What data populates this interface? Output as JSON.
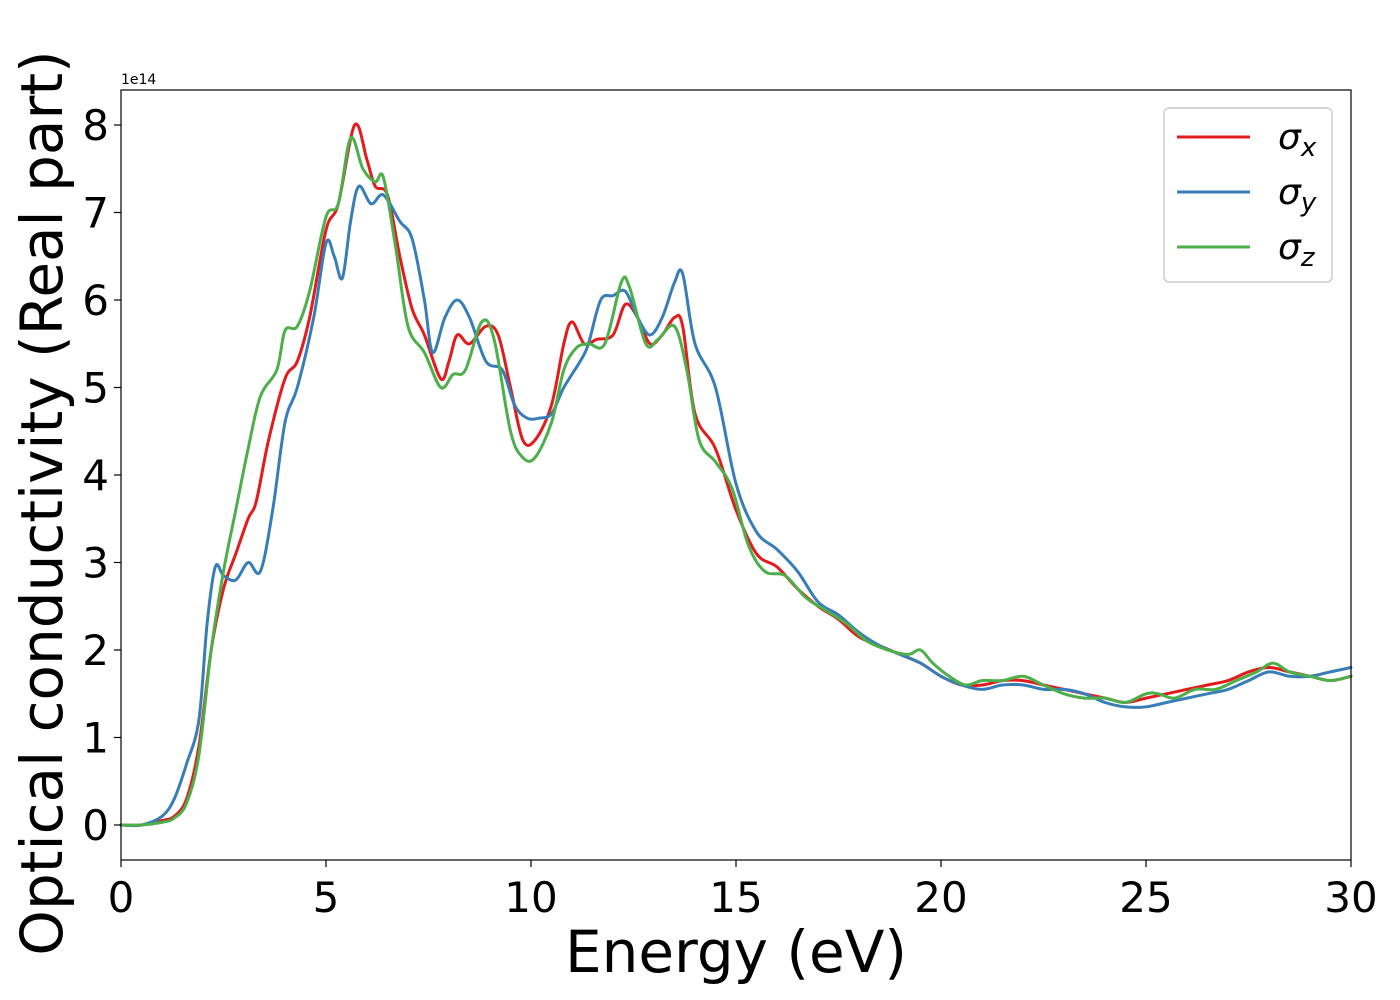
{
  "chart_data": {
    "type": "line",
    "xlabel": "Energy (eV)",
    "ylabel": "Optical conductivity (Real part)",
    "y_offset_label": "1e14",
    "xlim": [
      0,
      30
    ],
    "ylim": [
      -0.4,
      8.4
    ],
    "xticks": [
      0,
      5,
      10,
      15,
      20,
      25,
      30
    ],
    "yticks": [
      0,
      1,
      2,
      3,
      4,
      5,
      6,
      7,
      8
    ],
    "grid": false,
    "legend_position": "top-right",
    "series": [
      {
        "name": "σx",
        "legend_base": "σ",
        "legend_sub": "x",
        "color": "#e41a1c",
        "points": [
          [
            0,
            0
          ],
          [
            0.5,
            0
          ],
          [
            1,
            0.05
          ],
          [
            1.3,
            0.1
          ],
          [
            1.6,
            0.3
          ],
          [
            1.9,
            0.9
          ],
          [
            2.2,
            2.0
          ],
          [
            2.5,
            2.7
          ],
          [
            2.8,
            3.1
          ],
          [
            3.1,
            3.5
          ],
          [
            3.3,
            3.7
          ],
          [
            3.6,
            4.4
          ],
          [
            4.0,
            5.1
          ],
          [
            4.3,
            5.3
          ],
          [
            4.6,
            5.8
          ],
          [
            5.0,
            6.8
          ],
          [
            5.3,
            7.1
          ],
          [
            5.7,
            8.0
          ],
          [
            6.0,
            7.6
          ],
          [
            6.2,
            7.3
          ],
          [
            6.5,
            7.2
          ],
          [
            6.8,
            6.5
          ],
          [
            7.1,
            5.9
          ],
          [
            7.4,
            5.6
          ],
          [
            7.8,
            5.1
          ],
          [
            8.0,
            5.3
          ],
          [
            8.2,
            5.6
          ],
          [
            8.5,
            5.5
          ],
          [
            8.9,
            5.7
          ],
          [
            9.2,
            5.6
          ],
          [
            9.5,
            5.0
          ],
          [
            9.8,
            4.4
          ],
          [
            10.1,
            4.4
          ],
          [
            10.5,
            4.8
          ],
          [
            10.8,
            5.5
          ],
          [
            11.0,
            5.75
          ],
          [
            11.3,
            5.5
          ],
          [
            11.6,
            5.55
          ],
          [
            12.0,
            5.6
          ],
          [
            12.3,
            5.95
          ],
          [
            12.6,
            5.8
          ],
          [
            12.9,
            5.5
          ],
          [
            13.2,
            5.6
          ],
          [
            13.5,
            5.8
          ],
          [
            13.7,
            5.7
          ],
          [
            14.0,
            4.7
          ],
          [
            14.5,
            4.3
          ],
          [
            15.0,
            3.6
          ],
          [
            15.5,
            3.1
          ],
          [
            16.0,
            2.95
          ],
          [
            16.5,
            2.7
          ],
          [
            17.0,
            2.5
          ],
          [
            17.5,
            2.35
          ],
          [
            18.0,
            2.15
          ],
          [
            18.5,
            2.05
          ],
          [
            19.0,
            1.95
          ],
          [
            19.5,
            1.85
          ],
          [
            20.0,
            1.7
          ],
          [
            20.5,
            1.6
          ],
          [
            21.0,
            1.6
          ],
          [
            21.5,
            1.65
          ],
          [
            22.0,
            1.65
          ],
          [
            22.5,
            1.6
          ],
          [
            23.0,
            1.55
          ],
          [
            23.5,
            1.5
          ],
          [
            24.0,
            1.45
          ],
          [
            24.5,
            1.4
          ],
          [
            25.0,
            1.45
          ],
          [
            25.5,
            1.5
          ],
          [
            26.0,
            1.55
          ],
          [
            26.5,
            1.6
          ],
          [
            27.0,
            1.65
          ],
          [
            27.5,
            1.75
          ],
          [
            28.0,
            1.8
          ],
          [
            28.5,
            1.75
          ],
          [
            29.0,
            1.7
          ],
          [
            29.5,
            1.65
          ],
          [
            30.0,
            1.7
          ]
        ]
      },
      {
        "name": "σy",
        "legend_base": "σ",
        "legend_sub": "y",
        "color": "#377eb8",
        "points": [
          [
            0,
            0
          ],
          [
            0.5,
            0
          ],
          [
            1,
            0.1
          ],
          [
            1.3,
            0.3
          ],
          [
            1.6,
            0.7
          ],
          [
            1.9,
            1.2
          ],
          [
            2.1,
            2.3
          ],
          [
            2.3,
            2.95
          ],
          [
            2.5,
            2.85
          ],
          [
            2.8,
            2.8
          ],
          [
            3.1,
            3.0
          ],
          [
            3.4,
            2.9
          ],
          [
            3.7,
            3.6
          ],
          [
            4.0,
            4.6
          ],
          [
            4.3,
            5.0
          ],
          [
            4.7,
            5.8
          ],
          [
            5.0,
            6.65
          ],
          [
            5.2,
            6.5
          ],
          [
            5.4,
            6.25
          ],
          [
            5.6,
            6.9
          ],
          [
            5.8,
            7.3
          ],
          [
            6.1,
            7.1
          ],
          [
            6.4,
            7.2
          ],
          [
            6.8,
            6.9
          ],
          [
            7.1,
            6.7
          ],
          [
            7.4,
            6.0
          ],
          [
            7.6,
            5.4
          ],
          [
            7.9,
            5.8
          ],
          [
            8.2,
            6.0
          ],
          [
            8.5,
            5.8
          ],
          [
            8.9,
            5.3
          ],
          [
            9.3,
            5.2
          ],
          [
            9.6,
            4.8
          ],
          [
            9.9,
            4.65
          ],
          [
            10.2,
            4.65
          ],
          [
            10.5,
            4.7
          ],
          [
            10.8,
            5.0
          ],
          [
            11.2,
            5.3
          ],
          [
            11.4,
            5.5
          ],
          [
            11.7,
            6.0
          ],
          [
            12.0,
            6.05
          ],
          [
            12.3,
            6.1
          ],
          [
            12.6,
            5.8
          ],
          [
            12.9,
            5.6
          ],
          [
            13.2,
            5.8
          ],
          [
            13.5,
            6.2
          ],
          [
            13.7,
            6.3
          ],
          [
            14.0,
            5.5
          ],
          [
            14.5,
            5.0
          ],
          [
            15.0,
            3.9
          ],
          [
            15.5,
            3.35
          ],
          [
            16.0,
            3.15
          ],
          [
            16.5,
            2.9
          ],
          [
            17.0,
            2.55
          ],
          [
            17.5,
            2.4
          ],
          [
            18.0,
            2.2
          ],
          [
            18.5,
            2.05
          ],
          [
            19.0,
            1.95
          ],
          [
            19.5,
            1.85
          ],
          [
            20.0,
            1.7
          ],
          [
            20.5,
            1.6
          ],
          [
            21.0,
            1.55
          ],
          [
            21.5,
            1.6
          ],
          [
            22.0,
            1.6
          ],
          [
            22.5,
            1.55
          ],
          [
            23.0,
            1.55
          ],
          [
            23.5,
            1.5
          ],
          [
            24.0,
            1.4
          ],
          [
            24.5,
            1.35
          ],
          [
            25.0,
            1.35
          ],
          [
            25.5,
            1.4
          ],
          [
            26.0,
            1.45
          ],
          [
            26.5,
            1.5
          ],
          [
            27.0,
            1.55
          ],
          [
            27.5,
            1.65
          ],
          [
            28.0,
            1.75
          ],
          [
            28.5,
            1.7
          ],
          [
            29.0,
            1.7
          ],
          [
            29.5,
            1.75
          ],
          [
            30.0,
            1.8
          ]
        ]
      },
      {
        "name": "σz",
        "legend_base": "σ",
        "legend_sub": "z",
        "color": "#4daf4a",
        "points": [
          [
            0,
            0
          ],
          [
            0.5,
            0
          ],
          [
            1,
            0.03
          ],
          [
            1.3,
            0.08
          ],
          [
            1.6,
            0.25
          ],
          [
            1.9,
            0.8
          ],
          [
            2.2,
            2.0
          ],
          [
            2.5,
            2.9
          ],
          [
            2.8,
            3.6
          ],
          [
            3.1,
            4.3
          ],
          [
            3.4,
            4.9
          ],
          [
            3.8,
            5.2
          ],
          [
            4.0,
            5.65
          ],
          [
            4.3,
            5.7
          ],
          [
            4.6,
            6.1
          ],
          [
            5.0,
            6.95
          ],
          [
            5.3,
            7.1
          ],
          [
            5.6,
            7.85
          ],
          [
            5.9,
            7.5
          ],
          [
            6.2,
            7.35
          ],
          [
            6.4,
            7.4
          ],
          [
            6.7,
            6.6
          ],
          [
            7.0,
            5.7
          ],
          [
            7.4,
            5.4
          ],
          [
            7.8,
            5.0
          ],
          [
            8.1,
            5.15
          ],
          [
            8.4,
            5.2
          ],
          [
            8.8,
            5.75
          ],
          [
            9.1,
            5.55
          ],
          [
            9.5,
            4.5
          ],
          [
            9.8,
            4.2
          ],
          [
            10.1,
            4.2
          ],
          [
            10.5,
            4.6
          ],
          [
            10.8,
            5.2
          ],
          [
            11.1,
            5.45
          ],
          [
            11.4,
            5.5
          ],
          [
            11.8,
            5.5
          ],
          [
            12.2,
            6.2
          ],
          [
            12.4,
            6.15
          ],
          [
            12.8,
            5.5
          ],
          [
            13.1,
            5.55
          ],
          [
            13.5,
            5.7
          ],
          [
            13.8,
            5.2
          ],
          [
            14.1,
            4.4
          ],
          [
            14.5,
            4.15
          ],
          [
            14.9,
            3.85
          ],
          [
            15.3,
            3.2
          ],
          [
            15.7,
            2.9
          ],
          [
            16.2,
            2.85
          ],
          [
            16.7,
            2.6
          ],
          [
            17.2,
            2.45
          ],
          [
            17.7,
            2.3
          ],
          [
            18.2,
            2.1
          ],
          [
            18.7,
            2.0
          ],
          [
            19.2,
            1.95
          ],
          [
            19.5,
            2.0
          ],
          [
            19.8,
            1.85
          ],
          [
            20.2,
            1.7
          ],
          [
            20.6,
            1.6
          ],
          [
            21.0,
            1.65
          ],
          [
            21.5,
            1.65
          ],
          [
            22.0,
            1.7
          ],
          [
            22.5,
            1.6
          ],
          [
            23.0,
            1.5
          ],
          [
            23.5,
            1.45
          ],
          [
            24.0,
            1.45
          ],
          [
            24.5,
            1.4
          ],
          [
            25.0,
            1.5
          ],
          [
            25.3,
            1.5
          ],
          [
            25.7,
            1.45
          ],
          [
            26.2,
            1.55
          ],
          [
            26.7,
            1.55
          ],
          [
            27.2,
            1.65
          ],
          [
            27.7,
            1.75
          ],
          [
            28.1,
            1.85
          ],
          [
            28.5,
            1.75
          ],
          [
            29.0,
            1.7
          ],
          [
            29.5,
            1.65
          ],
          [
            30.0,
            1.7
          ]
        ]
      }
    ]
  }
}
